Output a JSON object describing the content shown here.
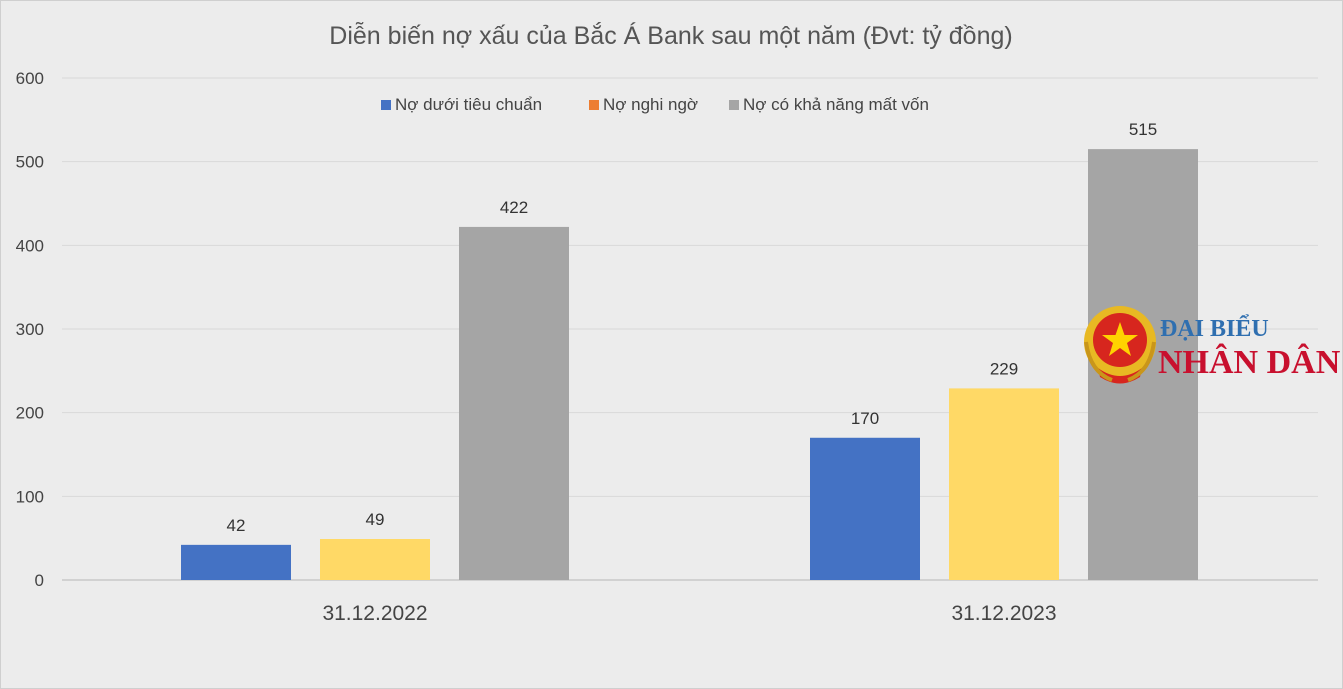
{
  "chart_data": {
    "type": "bar",
    "title": "Diễn biến nợ xấu của Bắc Á Bank sau một năm (Đvt: tỷ đồng)",
    "categories": [
      "31.12.2022",
      "31.12.2023"
    ],
    "series": [
      {
        "name": "Nợ dưới tiêu chuẩn",
        "values": [
          42,
          170
        ],
        "color": "#4472c4",
        "legend_color": "#4472c4"
      },
      {
        "name": "Nợ nghi ngờ",
        "values": [
          49,
          229
        ],
        "color": "#ffd966",
        "legend_color": "#ed7d31"
      },
      {
        "name": "Nợ có khả năng mất vốn",
        "values": [
          422,
          515
        ],
        "color": "#a5a5a5",
        "legend_color": "#a5a5a5"
      }
    ],
    "ylim": [
      0,
      600
    ],
    "yticks": [
      0,
      100,
      200,
      300,
      400,
      500,
      600
    ],
    "grid": true,
    "legend_position": "top-center",
    "xlabel": "",
    "ylabel": ""
  },
  "watermark": {
    "line1": "ĐẠI BIỂU",
    "line2": "NHÂN DÂN",
    "emblem_icon": "national-emblem-icon"
  }
}
